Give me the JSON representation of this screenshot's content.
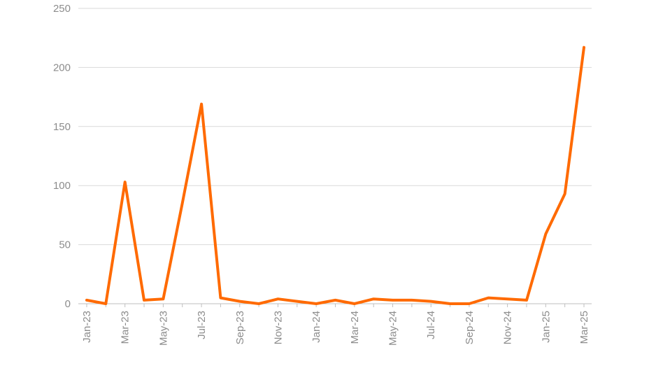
{
  "chart_data": {
    "type": "line",
    "title": "",
    "xlabel": "",
    "ylabel": "",
    "ylim": [
      0,
      250
    ],
    "yticks": [
      0,
      50,
      100,
      150,
      200,
      250
    ],
    "grid": true,
    "legend": "none",
    "x": [
      "Jan-23",
      "Feb-23",
      "Mar-23",
      "Apr-23",
      "May-23",
      "Jun-23",
      "Jul-23",
      "Aug-23",
      "Sep-23",
      "Oct-23",
      "Nov-23",
      "Dec-23",
      "Jan-24",
      "Feb-24",
      "Mar-24",
      "Apr-24",
      "May-24",
      "Jun-24",
      "Jul-24",
      "Aug-24",
      "Sep-24",
      "Oct-24",
      "Nov-24",
      "Dec-24",
      "Jan-25",
      "Feb-25",
      "Mar-25"
    ],
    "x_tick_labels": [
      "Jan-23",
      "Mar-23",
      "May-23",
      "Jul-23",
      "Sep-23",
      "Nov-23",
      "Jan-24",
      "Mar-24",
      "May-24",
      "Jul-24",
      "Sep-24",
      "Nov-24",
      "Jan-25",
      "Mar-25"
    ],
    "series": [
      {
        "color": "#ff6a00",
        "values": [
          3,
          0,
          103,
          3,
          4,
          85,
          169,
          5,
          2,
          0,
          4,
          2,
          0,
          3,
          0,
          4,
          3,
          3,
          2,
          0,
          0,
          5,
          4,
          3,
          59,
          93,
          217
        ]
      }
    ]
  }
}
